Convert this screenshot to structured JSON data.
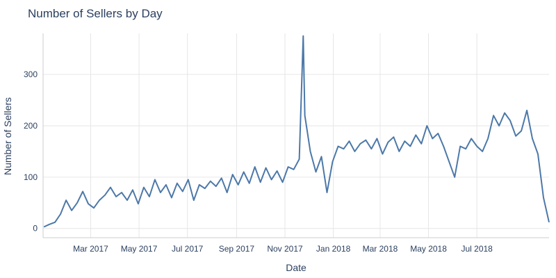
{
  "chart_data": {
    "type": "line",
    "title": "Number of Sellers by Day",
    "xlabel": "Date",
    "ylabel": "Number of Sellers",
    "xlim": [
      "2016-12-31",
      "2018-09-30"
    ],
    "ylim": [
      -18,
      380
    ],
    "y_ticks": [
      0,
      100,
      200,
      300
    ],
    "x_ticks": [
      {
        "date": "2017-03-01",
        "label": "Mar 2017"
      },
      {
        "date": "2017-05-01",
        "label": "May 2017"
      },
      {
        "date": "2017-07-01",
        "label": "Jul 2017"
      },
      {
        "date": "2017-09-01",
        "label": "Sep 2017"
      },
      {
        "date": "2017-11-01",
        "label": "Nov 2017"
      },
      {
        "date": "2018-01-01",
        "label": "Jan 2018"
      },
      {
        "date": "2018-03-01",
        "label": "Mar 2018"
      },
      {
        "date": "2018-05-01",
        "label": "May 2018"
      },
      {
        "date": "2018-07-01",
        "label": "Jul 2018"
      }
    ],
    "grid": true,
    "line_color": "#4c78a8",
    "series": [
      {
        "x": [
          "2017-01-01",
          "2017-01-08",
          "2017-01-15",
          "2017-01-22",
          "2017-01-29",
          "2017-02-05",
          "2017-02-12",
          "2017-02-19",
          "2017-02-26",
          "2017-03-05",
          "2017-03-12",
          "2017-03-19",
          "2017-03-26",
          "2017-04-02",
          "2017-04-09",
          "2017-04-16",
          "2017-04-23",
          "2017-04-30",
          "2017-05-07",
          "2017-05-14",
          "2017-05-21",
          "2017-05-28",
          "2017-06-04",
          "2017-06-11",
          "2017-06-18",
          "2017-06-25",
          "2017-07-02",
          "2017-07-09",
          "2017-07-16",
          "2017-07-23",
          "2017-07-30",
          "2017-08-06",
          "2017-08-13",
          "2017-08-20",
          "2017-08-27",
          "2017-09-03",
          "2017-09-10",
          "2017-09-17",
          "2017-09-24",
          "2017-10-01",
          "2017-10-08",
          "2017-10-15",
          "2017-10-22",
          "2017-10-29",
          "2017-11-05",
          "2017-11-12",
          "2017-11-19",
          "2017-11-24",
          "2017-11-26",
          "2017-12-03",
          "2017-12-10",
          "2017-12-17",
          "2017-12-24",
          "2017-12-31",
          "2018-01-07",
          "2018-01-14",
          "2018-01-21",
          "2018-01-28",
          "2018-02-04",
          "2018-02-11",
          "2018-02-18",
          "2018-02-25",
          "2018-03-04",
          "2018-03-11",
          "2018-03-18",
          "2018-03-25",
          "2018-04-01",
          "2018-04-08",
          "2018-04-15",
          "2018-04-22",
          "2018-04-29",
          "2018-05-06",
          "2018-05-13",
          "2018-05-20",
          "2018-05-27",
          "2018-06-03",
          "2018-06-10",
          "2018-06-17",
          "2018-06-24",
          "2018-07-01",
          "2018-07-08",
          "2018-07-15",
          "2018-07-22",
          "2018-07-29",
          "2018-08-05",
          "2018-08-12",
          "2018-08-19",
          "2018-08-26",
          "2018-09-02",
          "2018-09-09",
          "2018-09-16",
          "2018-09-23",
          "2018-09-30"
        ],
        "y": [
          3,
          8,
          12,
          28,
          55,
          35,
          50,
          72,
          48,
          40,
          55,
          65,
          80,
          62,
          70,
          55,
          75,
          48,
          80,
          62,
          95,
          70,
          85,
          60,
          88,
          72,
          95,
          55,
          85,
          78,
          92,
          82,
          98,
          70,
          105,
          85,
          110,
          88,
          120,
          90,
          118,
          95,
          112,
          90,
          120,
          115,
          135,
          375,
          220,
          150,
          110,
          140,
          70,
          130,
          160,
          155,
          170,
          150,
          165,
          172,
          155,
          175,
          145,
          168,
          178,
          150,
          170,
          160,
          182,
          165,
          200,
          175,
          185,
          160,
          130,
          100,
          160,
          155,
          175,
          160,
          150,
          175,
          220,
          200,
          225,
          210,
          180,
          190,
          230,
          175,
          145,
          60,
          12
        ]
      }
    ]
  }
}
